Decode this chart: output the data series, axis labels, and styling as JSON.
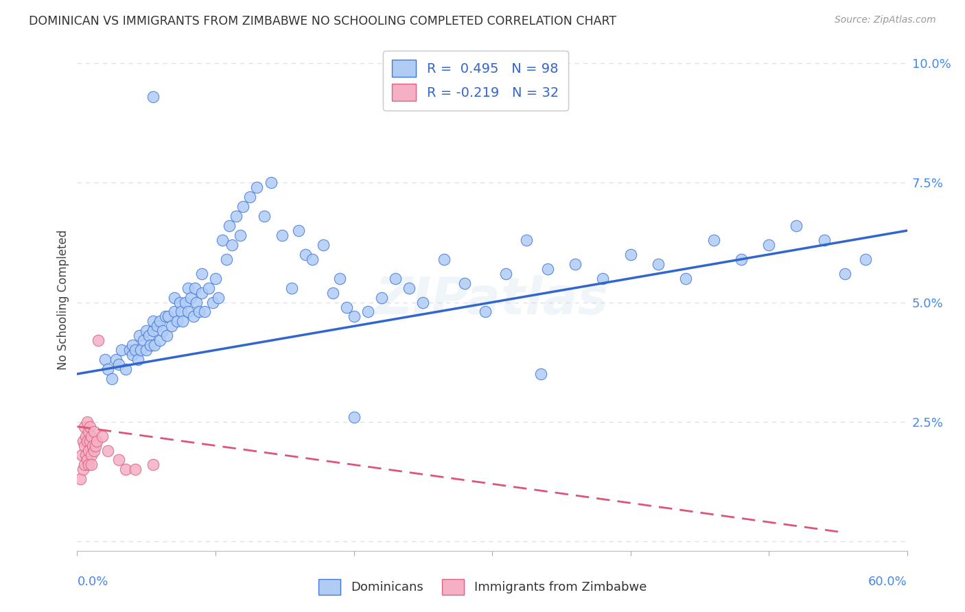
{
  "title": "DOMINICAN VS IMMIGRANTS FROM ZIMBABWE NO SCHOOLING COMPLETED CORRELATION CHART",
  "source": "Source: ZipAtlas.com",
  "ylabel": "No Schooling Completed",
  "xlim": [
    0.0,
    0.6
  ],
  "ylim": [
    -0.002,
    0.103
  ],
  "watermark": "ZIPatlas",
  "legend_r1": "R =  0.495   N = 98",
  "legend_r2": "R = -0.219   N = 32",
  "dominican_color": "#b0ccf5",
  "dominican_edge_color": "#4477dd",
  "zimbabwe_color": "#f5b0c5",
  "zimbabwe_edge_color": "#e06080",
  "blue_line_color": "#3366cc",
  "pink_line_color": "#dd5577",
  "background_color": "#ffffff",
  "grid_color": "#ddddee",
  "blue_scatter_x": [
    0.02,
    0.022,
    0.025,
    0.028,
    0.03,
    0.032,
    0.035,
    0.038,
    0.04,
    0.04,
    0.042,
    0.044,
    0.045,
    0.046,
    0.048,
    0.05,
    0.05,
    0.052,
    0.053,
    0.055,
    0.055,
    0.056,
    0.058,
    0.06,
    0.06,
    0.062,
    0.064,
    0.065,
    0.066,
    0.068,
    0.07,
    0.07,
    0.072,
    0.074,
    0.075,
    0.076,
    0.078,
    0.08,
    0.08,
    0.082,
    0.084,
    0.085,
    0.086,
    0.088,
    0.09,
    0.09,
    0.092,
    0.095,
    0.098,
    0.1,
    0.102,
    0.105,
    0.108,
    0.11,
    0.112,
    0.115,
    0.118,
    0.12,
    0.125,
    0.13,
    0.135,
    0.14,
    0.148,
    0.155,
    0.16,
    0.165,
    0.17,
    0.178,
    0.185,
    0.19,
    0.195,
    0.2,
    0.21,
    0.22,
    0.23,
    0.24,
    0.25,
    0.265,
    0.28,
    0.295,
    0.31,
    0.325,
    0.34,
    0.36,
    0.38,
    0.4,
    0.42,
    0.44,
    0.46,
    0.48,
    0.5,
    0.52,
    0.54,
    0.555,
    0.57,
    0.335,
    0.055,
    0.2
  ],
  "blue_scatter_y": [
    0.038,
    0.036,
    0.034,
    0.038,
    0.037,
    0.04,
    0.036,
    0.04,
    0.039,
    0.041,
    0.04,
    0.038,
    0.043,
    0.04,
    0.042,
    0.04,
    0.044,
    0.043,
    0.041,
    0.044,
    0.046,
    0.041,
    0.045,
    0.042,
    0.046,
    0.044,
    0.047,
    0.043,
    0.047,
    0.045,
    0.048,
    0.051,
    0.046,
    0.05,
    0.048,
    0.046,
    0.05,
    0.048,
    0.053,
    0.051,
    0.047,
    0.053,
    0.05,
    0.048,
    0.056,
    0.052,
    0.048,
    0.053,
    0.05,
    0.055,
    0.051,
    0.063,
    0.059,
    0.066,
    0.062,
    0.068,
    0.064,
    0.07,
    0.072,
    0.074,
    0.068,
    0.075,
    0.064,
    0.053,
    0.065,
    0.06,
    0.059,
    0.062,
    0.052,
    0.055,
    0.049,
    0.047,
    0.048,
    0.051,
    0.055,
    0.053,
    0.05,
    0.059,
    0.054,
    0.048,
    0.056,
    0.063,
    0.057,
    0.058,
    0.055,
    0.06,
    0.058,
    0.055,
    0.063,
    0.059,
    0.062,
    0.066,
    0.063,
    0.056,
    0.059,
    0.035,
    0.093,
    0.026
  ],
  "pink_scatter_x": [
    0.002,
    0.003,
    0.004,
    0.004,
    0.005,
    0.005,
    0.005,
    0.006,
    0.006,
    0.007,
    0.007,
    0.007,
    0.008,
    0.008,
    0.008,
    0.009,
    0.009,
    0.01,
    0.01,
    0.01,
    0.011,
    0.012,
    0.012,
    0.013,
    0.014,
    0.015,
    0.018,
    0.022,
    0.03,
    0.035,
    0.042,
    0.055
  ],
  "pink_scatter_y": [
    0.013,
    0.018,
    0.015,
    0.021,
    0.016,
    0.02,
    0.024,
    0.018,
    0.022,
    0.017,
    0.021,
    0.025,
    0.019,
    0.023,
    0.016,
    0.021,
    0.024,
    0.018,
    0.022,
    0.016,
    0.02,
    0.023,
    0.019,
    0.02,
    0.021,
    0.042,
    0.022,
    0.019,
    0.017,
    0.015,
    0.015,
    0.016
  ],
  "blue_line": [
    0.0,
    0.035,
    0.6,
    0.065
  ],
  "pink_line": [
    0.0,
    0.024,
    0.55,
    0.002
  ],
  "yticks": [
    0.0,
    0.025,
    0.05,
    0.075,
    0.1
  ],
  "ytick_labels": [
    "",
    "2.5%",
    "5.0%",
    "7.5%",
    "10.0%"
  ],
  "xtick_positions": [
    0.0,
    0.1,
    0.2,
    0.3,
    0.4,
    0.5,
    0.6
  ]
}
